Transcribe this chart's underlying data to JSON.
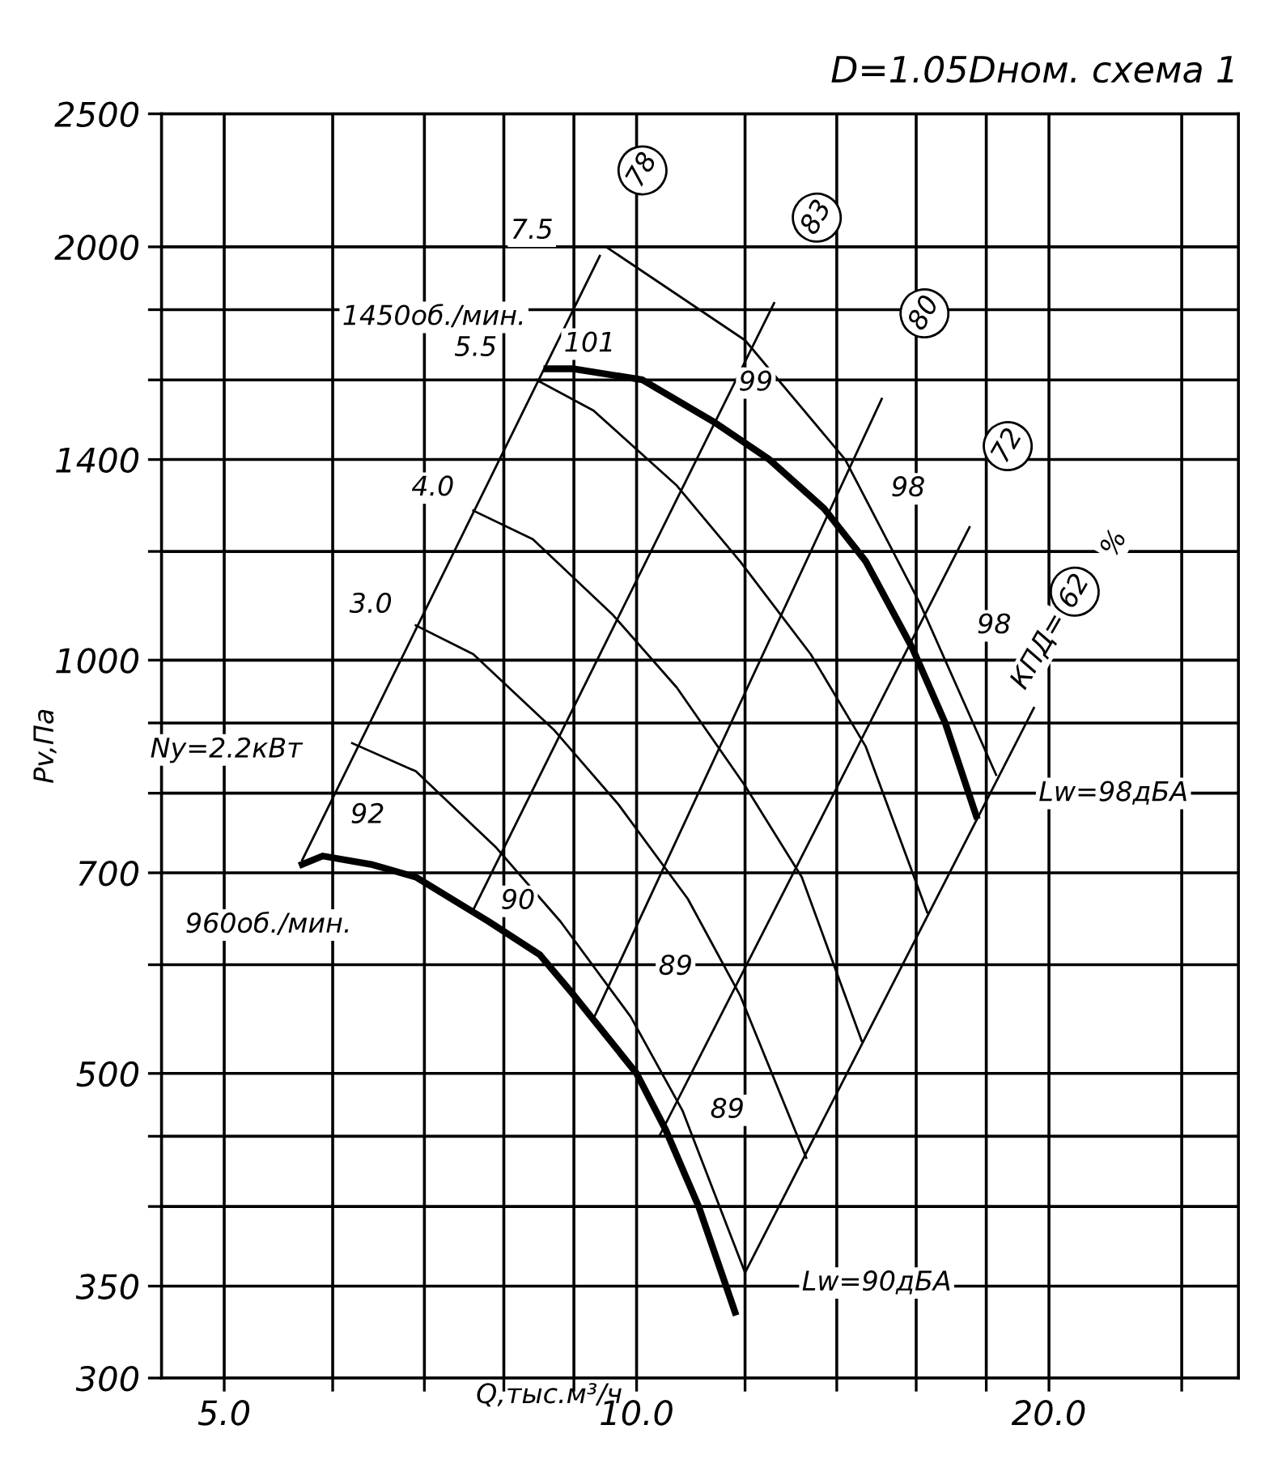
{
  "chart_data": {
    "type": "line",
    "title": "D=1.05Dном. схема 1",
    "xlabel": "Q,тыс.м³/ч",
    "ylabel": "Pv,Па",
    "log": "xy",
    "grid": true,
    "legend": false,
    "marker": "none",
    "line_style": "solid",
    "xlim": [
      4.5,
      27.5
    ],
    "ylim": [
      300,
      2500
    ],
    "xticks": [
      {
        "value": 5,
        "label": "5.0"
      },
      {
        "value": 6,
        "label": null
      },
      {
        "value": 7,
        "label": null
      },
      {
        "value": 8,
        "label": null
      },
      {
        "value": 9,
        "label": null
      },
      {
        "value": 10,
        "label": "10.0"
      },
      {
        "value": 12,
        "label": null
      },
      {
        "value": 14,
        "label": null
      },
      {
        "value": 16,
        "label": null
      },
      {
        "value": 18,
        "label": null
      },
      {
        "value": 20,
        "label": "20.0"
      },
      {
        "value": 25,
        "label": null
      }
    ],
    "yticks": [
      300,
      350,
      {
        "value": 400,
        "label": null
      },
      {
        "value": 450,
        "label": null
      },
      500,
      {
        "value": 600,
        "label": null
      },
      700,
      {
        "value": 800,
        "label": null
      },
      {
        "value": 900,
        "label": null
      },
      1000,
      {
        "value": 1200,
        "label": null
      },
      1400,
      {
        "value": 1600,
        "label": null
      },
      {
        "value": 1800,
        "label": null
      },
      2000,
      2500
    ],
    "series": [
      {
        "color": "#000000",
        "x": [
          8.6,
          9.0,
          10.1,
          11.4,
          12.5,
          13.7,
          14.7,
          15.9,
          16.8,
          17.7
        ],
        "values": [
          1630,
          1630,
          1600,
          1490,
          1400,
          1290,
          1180,
          1020,
          900,
          770
        ]
      },
      {
        "color": "#000000",
        "x": [
          5.7,
          5.9,
          6.4,
          6.9,
          7.8,
          8.5,
          9.0,
          10.0,
          10.5,
          11.1,
          11.8
        ],
        "values": [
          710,
          720,
          710,
          695,
          645,
          610,
          570,
          500,
          455,
          400,
          335
        ]
      },
      {
        "color": "#000000",
        "x": [
          9.5,
          12.0,
          14.2,
          16.1,
          18.3
        ],
        "values": [
          2000,
          1710,
          1400,
          1100,
          825
        ]
      },
      {
        "color": "#000000",
        "x": [
          8.45,
          9.3,
          10.7,
          11.9,
          13.4,
          14.7,
          16.3
        ],
        "values": [
          1600,
          1520,
          1340,
          1180,
          1010,
          865,
          655
        ]
      },
      {
        "color": "#000000",
        "x": [
          7.6,
          8.4,
          9.6,
          10.7,
          12.0,
          13.2,
          14.6
        ],
        "values": [
          1285,
          1225,
          1080,
          955,
          810,
          695,
          528
        ]
      },
      {
        "color": "#000000",
        "x": [
          6.9,
          7.6,
          8.7,
          9.7,
          10.9,
          11.9,
          13.3
        ],
        "values": [
          1060,
          1010,
          890,
          785,
          670,
          570,
          434
        ]
      },
      {
        "color": "#000000",
        "x": [
          6.2,
          6.9,
          7.9,
          8.8,
          9.9,
          10.8,
          12.0
        ],
        "values": [
          870,
          830,
          730,
          645,
          550,
          470,
          358
        ]
      },
      {
        "color": "#000000",
        "x": [
          5.7,
          9.4
        ],
        "values": [
          715,
          1970
        ]
      },
      {
        "color": "#000000",
        "x": [
          7.6,
          12.6
        ],
        "values": [
          658,
          1820
        ]
      },
      {
        "color": "#000000",
        "x": [
          9.3,
          15.1
        ],
        "values": [
          548,
          1550
        ]
      },
      {
        "color": "#000000",
        "x": [
          10.4,
          17.5
        ],
        "values": [
          451,
          1250
        ]
      },
      {
        "color": "#000000",
        "x": [
          12.0,
          19.5
        ],
        "values": [
          358,
          923
        ]
      }
    ],
    "annotations": [
      {
        "text": "78",
        "x": 9.4,
        "y": 1970
      },
      {
        "text": "83",
        "x": 12.6,
        "y": 1820
      },
      {
        "text": "80",
        "x": 15.1,
        "y": 1550
      },
      {
        "text": "72",
        "x": 17.5,
        "y": 1250
      },
      "62",
      "КПД=",
      "%",
      {
        "text": "101",
        "x": 9.0,
        "y": 1630
      },
      {
        "text": "99",
        "x": 12.5,
        "y": 1400
      },
      {
        "text": "98",
        "x": 14.2,
        "y": 1400
      },
      {
        "text": "98",
        "x": 16.1,
        "y": 1100
      },
      {
        "text": "92",
        "x": 5.9,
        "y": 720
      },
      {
        "text": "90",
        "x": 7.8,
        "y": 645
      },
      {
        "text": "89",
        "x": 9.9,
        "y": 550
      },
      {
        "text": "89",
        "x": 10.8,
        "y": 470
      },
      {
        "text": "Lw=98дБА",
        "x": 17.7,
        "y": 770
      },
      {
        "text": "Lw=90дБА",
        "x": 11.8,
        "y": 335
      },
      "1450об./мин.",
      {
        "text": "960об./мин.",
        "x": 5.7,
        "y": 710
      },
      {
        "text": "Ny=2.2кВт",
        "x": 6.2,
        "y": 870
      },
      {
        "text": "3.0",
        "x": 6.9,
        "y": 1060
      },
      {
        "text": "4.0",
        "x": 7.6,
        "y": 1285
      },
      {
        "text": "5.5",
        "x": 8.45,
        "y": 1600
      },
      {
        "text": "7.5",
        "x": 9.5,
        "y": 2000
      }
    ]
  }
}
